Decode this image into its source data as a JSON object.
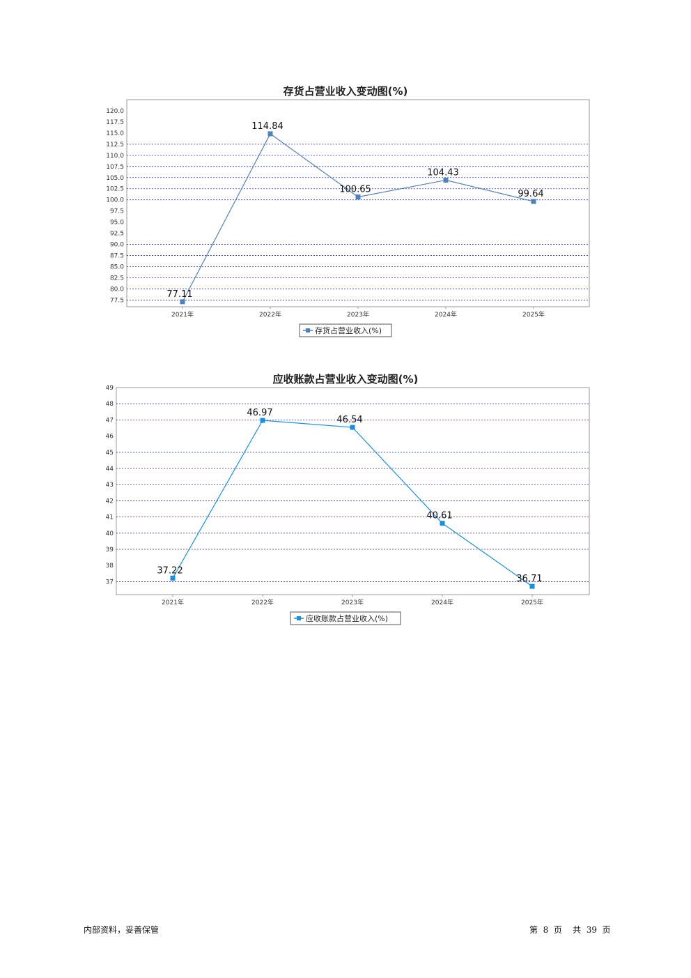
{
  "chart_data": [
    {
      "type": "line",
      "title": "存货占营业收入变动图(%)",
      "categories": [
        "2021年",
        "2022年",
        "2023年",
        "2024年",
        "2025年"
      ],
      "series": [
        {
          "name": "存货占营业收入(%)",
          "values": [
            77.11,
            114.84,
            100.65,
            104.43,
            99.64
          ],
          "color": "#4f81bd"
        }
      ],
      "data_labels": [
        "77.11",
        "114.84",
        "100.65",
        "104.43",
        "99.64"
      ],
      "yticks": [
        77.5,
        80.0,
        82.5,
        85.0,
        87.5,
        90.0,
        92.5,
        95.0,
        97.5,
        100.0,
        102.5,
        105.0,
        107.5,
        110.0,
        112.5,
        115.0,
        117.5,
        120.0
      ],
      "ytick_labels": [
        "77.5",
        "80.0",
        "82.5",
        "85.0",
        "87.5",
        "90.0",
        "92.5",
        "95.0",
        "97.5",
        "100.0",
        "102.5",
        "105.0",
        "107.5",
        "110.0",
        "112.5",
        "115.0",
        "117.5",
        "120.0"
      ],
      "grid_lines": [
        77.5,
        80.0,
        82.5,
        85.0,
        87.5,
        90.0,
        100.0,
        102.5,
        105.0,
        107.5,
        110.0,
        112.5
      ],
      "ylim": [
        76.0,
        122.5
      ],
      "xlabel": "",
      "ylabel": "",
      "legend_position": "bottom",
      "grid": true
    },
    {
      "type": "line",
      "title": "应收账款占营业收入变动图(%)",
      "categories": [
        "2021年",
        "2022年",
        "2023年",
        "2024年",
        "2025年"
      ],
      "series": [
        {
          "name": "应收账款占营业收入(%)",
          "values": [
            37.22,
            46.97,
            46.54,
            40.61,
            36.71
          ],
          "color": "#1a8fe0"
        }
      ],
      "data_labels": [
        "37.22",
        "46.97",
        "46.54",
        "40.61",
        "36.71"
      ],
      "yticks": [
        37,
        38,
        39,
        40,
        41,
        42,
        43,
        44,
        45,
        46,
        47,
        48,
        49
      ],
      "ytick_labels": [
        "37",
        "38",
        "39",
        "40",
        "41",
        "42",
        "43",
        "44",
        "45",
        "46",
        "47",
        "48",
        "49"
      ],
      "grid_lines": [
        37,
        39,
        40,
        41,
        42,
        43,
        44,
        45,
        47,
        48
      ],
      "ylim": [
        36.2,
        49.0
      ],
      "xlabel": "",
      "ylabel": "",
      "legend_position": "bottom",
      "grid": true
    }
  ],
  "footer": {
    "left": "内部资料，妥善保管",
    "right": "第  8  页    共  39  页"
  },
  "colors": {
    "grid": "#2b2bd6",
    "frame": "#999999"
  }
}
